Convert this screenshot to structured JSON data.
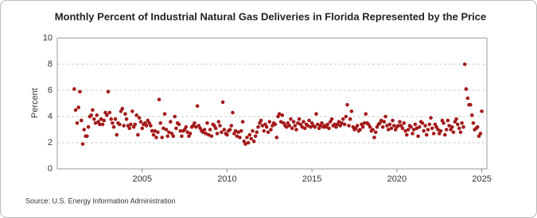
{
  "chart_data": {
    "type": "scatter",
    "title": "Monthly Percent of Industrial Natural Gas Deliveries in Florida Represented by the Price",
    "y_label": "Percent",
    "source": "Source: U.S. Energy Information Administration",
    "color": "#a31a1a",
    "grid": true,
    "xlim": [
      2000,
      2025.3
    ],
    "xticks": [
      2005,
      2010,
      2015,
      2020,
      2025
    ],
    "ylim": [
      0,
      10
    ],
    "yticks": [
      0,
      2,
      4,
      6,
      8,
      10
    ],
    "x": [
      2001.0,
      2001.08,
      2001.17,
      2001.25,
      2001.33,
      2001.42,
      2001.5,
      2001.58,
      2001.67,
      2001.75,
      2001.83,
      2001.92,
      2002.0,
      2002.08,
      2002.17,
      2002.25,
      2002.33,
      2002.42,
      2002.5,
      2002.58,
      2002.67,
      2002.75,
      2002.83,
      2002.92,
      2003.0,
      2003.08,
      2003.17,
      2003.25,
      2003.33,
      2003.42,
      2003.5,
      2003.58,
      2003.67,
      2003.75,
      2003.83,
      2003.92,
      2004.0,
      2004.08,
      2004.17,
      2004.25,
      2004.33,
      2004.42,
      2004.5,
      2004.58,
      2004.67,
      2004.75,
      2004.83,
      2004.92,
      2005.0,
      2005.08,
      2005.17,
      2005.25,
      2005.33,
      2005.42,
      2005.5,
      2005.58,
      2005.67,
      2005.75,
      2005.83,
      2005.92,
      2006.0,
      2006.08,
      2006.17,
      2006.25,
      2006.33,
      2006.42,
      2006.5,
      2006.58,
      2006.67,
      2006.75,
      2006.83,
      2006.92,
      2007.0,
      2007.08,
      2007.17,
      2007.25,
      2007.33,
      2007.42,
      2007.5,
      2007.58,
      2007.67,
      2007.75,
      2007.83,
      2007.92,
      2008.0,
      2008.08,
      2008.17,
      2008.25,
      2008.33,
      2008.42,
      2008.5,
      2008.58,
      2008.67,
      2008.75,
      2008.83,
      2008.92,
      2009.0,
      2009.08,
      2009.17,
      2009.25,
      2009.33,
      2009.42,
      2009.5,
      2009.58,
      2009.67,
      2009.75,
      2009.83,
      2009.92,
      2010.0,
      2010.08,
      2010.17,
      2010.25,
      2010.33,
      2010.42,
      2010.5,
      2010.58,
      2010.67,
      2010.75,
      2010.83,
      2010.92,
      2011.0,
      2011.08,
      2011.17,
      2011.25,
      2011.33,
      2011.42,
      2011.5,
      2011.58,
      2011.67,
      2011.75,
      2011.83,
      2011.92,
      2012.0,
      2012.08,
      2012.17,
      2012.25,
      2012.33,
      2012.42,
      2012.5,
      2012.58,
      2012.67,
      2012.75,
      2012.83,
      2012.92,
      2013.0,
      2013.08,
      2013.17,
      2013.25,
      2013.33,
      2013.42,
      2013.5,
      2013.58,
      2013.67,
      2013.75,
      2013.83,
      2013.92,
      2014.0,
      2014.08,
      2014.17,
      2014.25,
      2014.33,
      2014.42,
      2014.5,
      2014.58,
      2014.67,
      2014.75,
      2014.83,
      2014.92,
      2015.0,
      2015.08,
      2015.17,
      2015.25,
      2015.33,
      2015.42,
      2015.5,
      2015.58,
      2015.67,
      2015.75,
      2015.83,
      2015.92,
      2016.0,
      2016.08,
      2016.17,
      2016.25,
      2016.33,
      2016.42,
      2016.5,
      2016.58,
      2016.67,
      2016.75,
      2016.83,
      2016.92,
      2017.0,
      2017.08,
      2017.17,
      2017.25,
      2017.33,
      2017.42,
      2017.5,
      2017.58,
      2017.67,
      2017.75,
      2017.83,
      2017.92,
      2018.0,
      2018.08,
      2018.17,
      2018.25,
      2018.33,
      2018.42,
      2018.5,
      2018.58,
      2018.67,
      2018.75,
      2018.83,
      2018.92,
      2019.0,
      2019.08,
      2019.17,
      2019.25,
      2019.33,
      2019.42,
      2019.5,
      2019.58,
      2019.67,
      2019.75,
      2019.83,
      2019.92,
      2020.0,
      2020.08,
      2020.17,
      2020.25,
      2020.33,
      2020.42,
      2020.5,
      2020.58,
      2020.67,
      2020.75,
      2020.83,
      2020.92,
      2021.0,
      2021.08,
      2021.17,
      2021.25,
      2021.33,
      2021.42,
      2021.5,
      2021.58,
      2021.67,
      2021.75,
      2021.83,
      2021.92,
      2022.0,
      2022.08,
      2022.17,
      2022.25,
      2022.33,
      2022.42,
      2022.5,
      2022.58,
      2022.67,
      2022.75,
      2022.83,
      2022.92,
      2023.0,
      2023.08,
      2023.17,
      2023.25,
      2023.33,
      2023.42,
      2023.5,
      2023.58,
      2023.67,
      2023.75,
      2023.83,
      2023.92,
      2024.0,
      2024.08,
      2024.17,
      2024.25,
      2024.33,
      2024.42,
      2024.5,
      2024.58,
      2024.67,
      2024.75,
      2024.83,
      2024.92,
      2025.0
    ],
    "values": [
      6.1,
      4.5,
      3.5,
      4.7,
      5.9,
      3.7,
      1.9,
      3.0,
      2.5,
      2.5,
      3.2,
      4.0,
      4.1,
      4.5,
      3.8,
      3.5,
      4.1,
      3.6,
      3.4,
      3.8,
      3.4,
      3.7,
      4.3,
      4.1,
      5.9,
      4.3,
      3.8,
      3.5,
      3.2,
      3.8,
      2.6,
      3.5,
      3.4,
      4.4,
      4.6,
      3.3,
      4.2,
      3.8,
      3.3,
      3.1,
      3.4,
      4.4,
      3.2,
      3.4,
      4.1,
      2.6,
      3.9,
      3.6,
      3.1,
      3.4,
      3.5,
      3.3,
      3.7,
      3.5,
      3.3,
      2.9,
      2.6,
      2.9,
      2.4,
      2.8,
      5.3,
      3.5,
      2.4,
      3.1,
      4.2,
      3.0,
      2.5,
      2.8,
      3.6,
      2.7,
      2.5,
      4.0,
      3.1,
      3.5,
      3.4,
      2.9,
      2.5,
      2.9,
      3.0,
      3.2,
      2.8,
      2.5,
      2.7,
      3.2,
      3.3,
      3.5,
      3.2,
      4.8,
      3.3,
      3.1,
      2.9,
      2.8,
      3.0,
      2.7,
      3.5,
      2.6,
      3.0,
      2.5,
      3.4,
      3.3,
      3.1,
      2.7,
      3.6,
      3.3,
      2.8,
      5.1,
      3.0,
      2.7,
      2.6,
      2.9,
      3.0,
      3.3,
      4.3,
      2.7,
      2.9,
      2.5,
      2.8,
      2.4,
      2.9,
      3.6,
      2.1,
      1.9,
      2.4,
      2.0,
      2.6,
      2.3,
      2.9,
      2.1,
      2.5,
      2.8,
      3.2,
      3.5,
      3.7,
      3.3,
      2.9,
      3.4,
      3.2,
      2.8,
      3.6,
      3.0,
      3.3,
      3.5,
      3.4,
      2.4,
      4.0,
      4.2,
      3.6,
      4.1,
      3.5,
      3.3,
      3.2,
      3.5,
      3.3,
      3.8,
      3.1,
      3.6,
      3.3,
      3.0,
      3.5,
      3.8,
      3.4,
      3.2,
      3.6,
      3.1,
      3.4,
      3.3,
      3.7,
      3.2,
      3.5,
      3.3,
      3.2,
      4.2,
      3.4,
      3.1,
      3.3,
      3.5,
      3.2,
      3.3,
      3.2,
      3.4,
      3.1,
      3.6,
      3.8,
      3.3,
      3.4,
      3.2,
      3.4,
      3.6,
      3.3,
      3.5,
      3.8,
      3.4,
      4.0,
      4.9,
      3.3,
      3.8,
      4.4,
      3.2,
      3.0,
      3.1,
      3.3,
      2.9,
      3.0,
      3.4,
      3.2,
      3.5,
      4.2,
      3.5,
      3.4,
      3.2,
      2.9,
      3.0,
      2.4,
      2.8,
      3.2,
      3.4,
      3.5,
      3.7,
      3.2,
      3.6,
      4.0,
      3.3,
      3.0,
      3.4,
      3.1,
      3.7,
      3.3,
      3.0,
      3.2,
      3.3,
      3.6,
      3.3,
      3.1,
      3.5,
      2.9,
      2.6,
      3.0,
      3.3,
      3.2,
      2.7,
      3.0,
      3.4,
      3.1,
      2.5,
      3.2,
      3.6,
      3.5,
      2.9,
      3.3,
      2.6,
      3.0,
      3.4,
      3.9,
      3.1,
      2.7,
      3.4,
      3.2,
      3.0,
      2.7,
      2.9,
      3.7,
      3.5,
      2.6,
      3.0,
      3.7,
      3.3,
      3.0,
      3.2,
      2.8,
      3.6,
      3.8,
      3.4,
      3.1,
      2.8,
      3.5,
      3.2,
      8.0,
      6.1,
      5.4,
      4.9,
      4.9,
      4.1,
      3.5,
      3.0,
      3.1,
      3.2,
      2.5,
      2.7,
      4.4
    ]
  }
}
